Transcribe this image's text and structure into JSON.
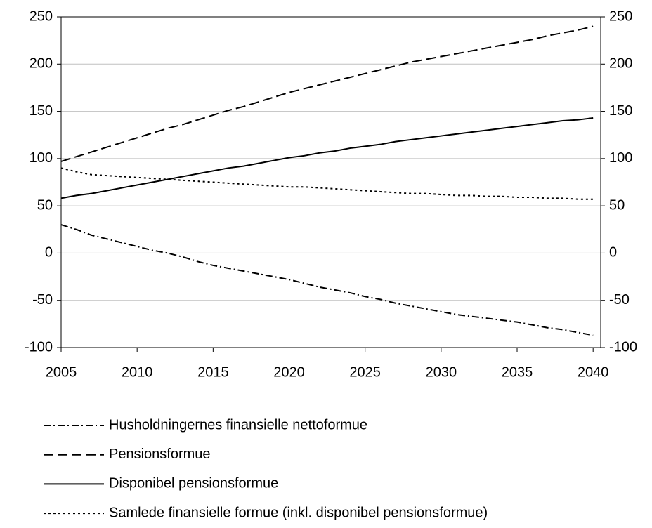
{
  "chart_data": {
    "type": "line",
    "x": [
      2005,
      2006,
      2007,
      2008,
      2009,
      2010,
      2011,
      2012,
      2013,
      2014,
      2015,
      2016,
      2017,
      2018,
      2019,
      2020,
      2021,
      2022,
      2023,
      2024,
      2025,
      2026,
      2027,
      2028,
      2029,
      2030,
      2031,
      2032,
      2033,
      2034,
      2035,
      2036,
      2037,
      2038,
      2039,
      2040
    ],
    "xlim": [
      2005,
      2040.5
    ],
    "xticks": [
      2005,
      2010,
      2015,
      2020,
      2025,
      2030,
      2035,
      2040
    ],
    "ylim": [
      -100,
      250
    ],
    "yticks": [
      -100,
      -50,
      0,
      50,
      100,
      150,
      200,
      250
    ],
    "y2lim": [
      -100,
      250
    ],
    "y2ticks": [
      -100,
      -50,
      0,
      50,
      100,
      150,
      200,
      250
    ],
    "grid": true,
    "legend": "bottom",
    "series": [
      {
        "name": "Husholdningernes finansielle nettoformue",
        "color": "#000000",
        "dash": "dashdot",
        "values": [
          30,
          25,
          19,
          15,
          11,
          7,
          3,
          0,
          -4,
          -9,
          -13,
          -16,
          -19,
          -22,
          -25,
          -28,
          -32,
          -36,
          -39,
          -42,
          -46,
          -49,
          -53,
          -56,
          -59,
          -62,
          -65,
          -67,
          -69,
          -71,
          -73,
          -76,
          -79,
          -81,
          -84,
          -87
        ]
      },
      {
        "name": "Pensionsformue",
        "color": "#000000",
        "dash": "dashed",
        "values": [
          97,
          102,
          107,
          112,
          117,
          122,
          127,
          132,
          136,
          141,
          146,
          151,
          155,
          160,
          165,
          170,
          174,
          178,
          182,
          186,
          190,
          194,
          198,
          202,
          205,
          208,
          211,
          214,
          217,
          220,
          223,
          226,
          230,
          233,
          236,
          240
        ]
      },
      {
        "name": "Disponibel pensionsformue",
        "color": "#000000",
        "dash": "solid",
        "values": [
          58,
          61,
          63,
          66,
          69,
          72,
          75,
          78,
          81,
          84,
          87,
          90,
          92,
          95,
          98,
          101,
          103,
          106,
          108,
          111,
          113,
          115,
          118,
          120,
          122,
          124,
          126,
          128,
          130,
          132,
          134,
          136,
          138,
          140,
          141,
          143
        ]
      },
      {
        "name": "Samlede finansielle formue (inkl. disponibel pensionsformue)",
        "color": "#000000",
        "dash": "dotted",
        "values": [
          90,
          86,
          83,
          82,
          81,
          80,
          79,
          78,
          77,
          76,
          75,
          74,
          73,
          72,
          71,
          70,
          70,
          69,
          68,
          67,
          66,
          65,
          64,
          63,
          63,
          62,
          61,
          61,
          60,
          60,
          59,
          59,
          58,
          58,
          57,
          57
        ]
      }
    ]
  }
}
